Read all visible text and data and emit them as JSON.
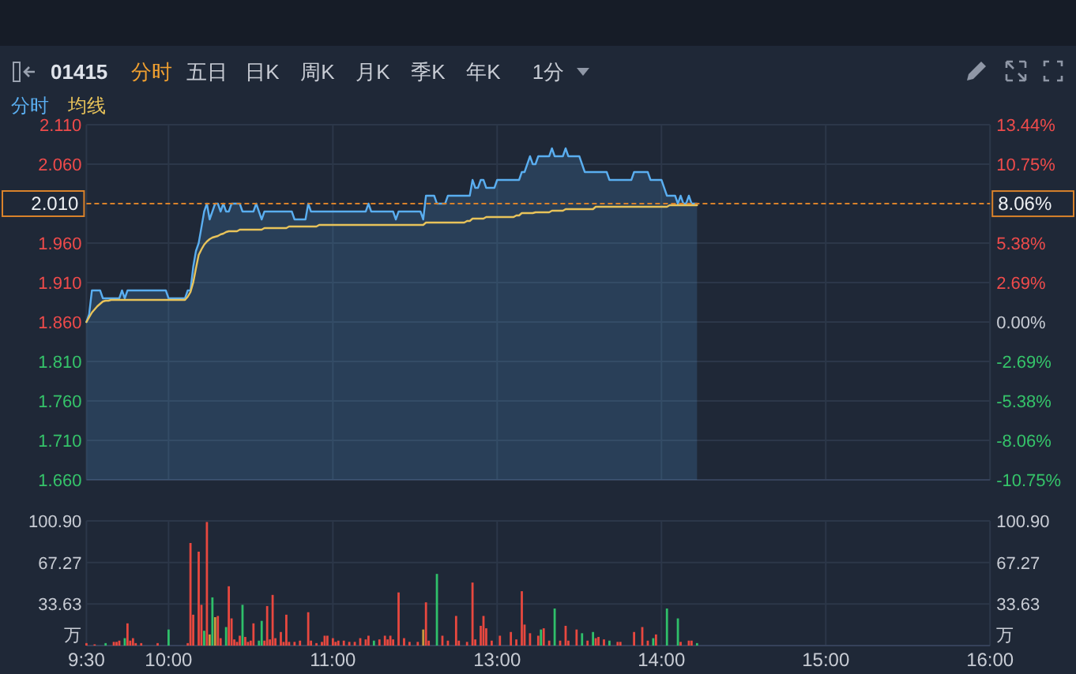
{
  "chart_data": [
    {
      "type": "line",
      "title": "01415",
      "annotations": [
        "分时",
        "五日",
        "日K",
        "周K",
        "月K",
        "季K",
        "年K",
        "1分"
      ],
      "legend": "top left",
      "grid": true,
      "tick_labels": "y",
      "categories": [
        null,
        null,
        null,
        null,
        null,
        null,
        null,
        null,
        null,
        null,
        null,
        null,
        null,
        null,
        null,
        null,
        null,
        null,
        null,
        null,
        null,
        null,
        null,
        null,
        null,
        null,
        null,
        null,
        null,
        null,
        null,
        null,
        null,
        null,
        null,
        null,
        null,
        null,
        null,
        null,
        null,
        null,
        null,
        null,
        null,
        null,
        null,
        null,
        null,
        null,
        null,
        null,
        null,
        null,
        null,
        null,
        null,
        null,
        null,
        null,
        null,
        null,
        null,
        null,
        null,
        null,
        null,
        null,
        null,
        null,
        null,
        null,
        null,
        null,
        null,
        null,
        null,
        null,
        null,
        null,
        null,
        null,
        null,
        null,
        null,
        null,
        null,
        null,
        null,
        null,
        null,
        null,
        null,
        null,
        null,
        null,
        null,
        null,
        null,
        null,
        null,
        null,
        null,
        null,
        null,
        null,
        null,
        null,
        null,
        null,
        null,
        null,
        null,
        null,
        null,
        null,
        null,
        null,
        null,
        null,
        null,
        null,
        null,
        null,
        null,
        null,
        null,
        null,
        null,
        null,
        null,
        null,
        null,
        null,
        null,
        null,
        null,
        null,
        null,
        null,
        null,
        null,
        null,
        null,
        null,
        null,
        null,
        null,
        null,
        null,
        null,
        null,
        null,
        null,
        null,
        null,
        null,
        null,
        null,
        null,
        null,
        null,
        null,
        null,
        null,
        null,
        null,
        null,
        null,
        null,
        null,
        null,
        null,
        null,
        null,
        null,
        null,
        null,
        null,
        null,
        null,
        null,
        null,
        null,
        null,
        null,
        null,
        null,
        null,
        null,
        null,
        null,
        null,
        null,
        null,
        null,
        null,
        null,
        null,
        null,
        null,
        null,
        null,
        null,
        null,
        null,
        null,
        null,
        null,
        null,
        null,
        null,
        null,
        null,
        null,
        null,
        null,
        null,
        null,
        null,
        null,
        null,
        null,
        null,
        null,
        null,
        null,
        null,
        null,
        null,
        null,
        null,
        null,
        null,
        null,
        null,
        null,
        null,
        null,
        null,
        null,
        null,
        null,
        null,
        null,
        null,
        null,
        null,
        null,
        null,
        null,
        null,
        null,
        null,
        null,
        null,
        null,
        null,
        null,
        null,
        null,
        null,
        null,
        null,
        null,
        null,
        null,
        null,
        null,
        null,
        null,
        null,
        null,
        null,
        null,
        null,
        null,
        null,
        null,
        null,
        null,
        null,
        null,
        null,
        null,
        null,
        null,
        null,
        null,
        null,
        null,
        null,
        null,
        null,
        null,
        null,
        null,
        null,
        null,
        null,
        null,
        null,
        null,
        null,
        null,
        null,
        null,
        null,
        null,
        null,
        null,
        null,
        null,
        null,
        null,
        null,
        null,
        null,
        null,
        null,
        null,
        null,
        null,
        null,
        null,
        null,
        null,
        null,
        null,
        null,
        null
      ],
      "ylim": [
        1.66,
        2.11
      ],
      "yticks": [
        {
          "value": 1.66,
          "label": "1.660"
        },
        {
          "value": 1.71,
          "label": "1.710"
        },
        {
          "value": 1.76,
          "label": "1.760"
        },
        {
          "value": 1.81,
          "label": "1.810"
        },
        {
          "value": 1.86,
          "label": "1.860"
        },
        {
          "value": 1.91,
          "label": "1.910"
        },
        {
          "value": 1.96,
          "label": "1.960"
        },
        {
          "value": 2.06,
          "label": "2.060"
        },
        {
          "value": 2.11,
          "label": "2.110"
        }
      ],
      "y2lim": [
        -10.75,
        13.44
      ],
      "y2ticks": [
        {
          "value": -10.75,
          "label": "-10.75%"
        },
        {
          "value": -8.06,
          "label": "-8.06%"
        },
        {
          "value": -5.38,
          "label": "-5.38%"
        },
        {
          "value": -2.69,
          "label": "-2.69%"
        },
        {
          "value": 0,
          "label": "0.00%"
        },
        {
          "value": 2.69,
          "label": "2.69%"
        },
        {
          "value": 5.38,
          "label": "5.38%"
        },
        {
          "value": 8.06,
          "label": "8.06%"
        },
        {
          "value": 10.75,
          "label": "10.75%"
        },
        {
          "value": 13.44,
          "label": "13.44%"
        }
      ],
      "ref_lines": [
        {
          "axis": "y",
          "value": 2.01,
          "label": "2.010",
          "color": "#d9822b",
          "line_style": "dashed"
        }
      ],
      "series": [
        {
          "name": "分时",
          "type": "area",
          "color": "#5aaef0",
          "values": [
            1.86,
            1.87,
            1.9,
            1.9,
            1.9,
            1.9,
            1.89,
            1.89,
            1.89,
            1.89,
            1.89,
            1.89,
            1.89,
            1.9,
            1.89,
            1.9,
            1.9,
            1.9,
            1.9,
            1.9,
            1.9,
            1.9,
            1.9,
            1.9,
            1.9,
            1.9,
            1.9,
            1.9,
            1.9,
            1.9,
            1.89,
            1.89,
            1.89,
            1.89,
            1.89,
            1.89,
            1.89,
            1.9,
            1.9,
            1.93,
            1.95,
            1.96,
            1.98,
            2.0,
            2.01,
            1.99,
            2.0,
            2.01,
            2.01,
            2.0,
            2.01,
            2.0,
            2.0,
            2.01,
            2.01,
            2.01,
            2.01,
            2.0,
            2.0,
            2.0,
            2.0,
            2.0,
            2.01,
            2.0,
            1.99,
            2.0,
            2.0,
            2.0,
            2.0,
            2.0,
            2.0,
            2.0,
            2.0,
            2.0,
            2.0,
            2.0,
            1.99,
            1.99,
            1.99,
            1.99,
            1.99,
            2.01,
            2.0,
            2.0,
            2.0,
            2.0,
            2.0,
            2.0,
            2.0,
            2.0,
            2.0,
            2.0,
            2.0,
            2.0,
            2.0,
            2.0,
            2.0,
            2.0,
            2.0,
            2.0,
            2.0,
            2.0,
            2.0,
            2.01,
            2.0,
            2.0,
            2.0,
            2.0,
            2.0,
            2.0,
            2.0,
            2.0,
            2.0,
            1.99,
            2.0,
            2.0,
            2.0,
            2.0,
            2.0,
            2.0,
            2.0,
            2.0,
            2.0,
            1.99,
            2.02,
            2.02,
            2.02,
            2.02,
            2.01,
            2.01,
            2.01,
            2.01,
            2.02,
            2.02,
            2.02,
            2.02,
            2.02,
            2.02,
            2.02,
            2.02,
            2.02,
            2.04,
            2.03,
            2.03,
            2.04,
            2.04,
            2.03,
            2.03,
            2.03,
            2.03,
            2.04,
            2.04,
            2.04,
            2.04,
            2.04,
            2.04,
            2.04,
            2.04,
            2.04,
            2.05,
            2.05,
            2.06,
            2.07,
            2.06,
            2.06,
            2.07,
            2.07,
            2.07,
            2.07,
            2.07,
            2.08,
            2.07,
            2.07,
            2.07,
            2.07,
            2.08,
            2.07,
            2.07,
            2.07,
            2.07,
            2.07,
            2.06,
            2.05,
            2.05,
            2.05,
            2.05,
            2.05,
            2.05,
            2.05,
            2.05,
            2.05,
            2.04,
            2.04,
            2.04,
            2.04,
            2.04,
            2.04,
            2.04,
            2.04,
            2.04,
            2.05,
            2.05,
            2.05,
            2.05,
            2.05,
            2.05,
            2.04,
            2.04,
            2.04,
            2.04,
            2.04,
            2.03,
            2.02,
            2.02,
            2.02,
            2.02,
            2.01,
            2.02,
            2.01,
            2.01,
            2.02,
            2.01,
            2.01,
            2.01,
            null,
            null,
            null,
            null,
            null,
            null,
            null,
            null,
            null,
            null,
            null,
            null,
            null,
            null,
            null,
            null,
            null,
            null,
            null,
            null,
            null,
            null,
            null,
            null,
            null,
            null,
            null,
            null,
            null,
            null,
            null,
            null,
            null,
            null,
            null,
            null,
            null,
            null,
            null,
            null,
            null,
            null,
            null,
            null,
            null,
            null,
            null,
            null,
            null,
            null,
            null,
            null,
            null,
            null,
            null,
            null,
            null,
            null,
            null,
            null,
            null,
            null,
            null,
            null,
            null,
            null,
            null,
            null,
            null,
            null,
            null,
            null,
            null,
            null,
            null,
            null,
            null,
            null,
            null,
            null,
            null,
            null,
            null,
            null,
            null,
            null,
            null,
            null,
            null,
            null,
            null,
            null,
            null,
            null,
            null,
            null,
            null,
            null,
            null,
            null,
            null,
            null,
            null,
            null,
            null,
            null,
            null
          ]
        },
        {
          "name": "均线",
          "type": "line",
          "color": "#e8c35a",
          "values": [
            1.86,
            1.866,
            1.872,
            1.876,
            1.88,
            1.883,
            1.886,
            1.887,
            1.887,
            1.888,
            1.888,
            1.888,
            1.888,
            1.888,
            1.888,
            1.888,
            1.888,
            1.888,
            1.888,
            1.888,
            1.888,
            1.888,
            1.888,
            1.888,
            1.888,
            1.888,
            1.888,
            1.888,
            1.888,
            1.888,
            1.888,
            1.888,
            1.888,
            1.888,
            1.888,
            1.888,
            1.888,
            1.892,
            1.898,
            1.91,
            1.928,
            1.945,
            1.952,
            1.958,
            1.962,
            1.965,
            1.967,
            1.968,
            1.969,
            1.971,
            1.972,
            1.974,
            1.975,
            1.975,
            1.975,
            1.975,
            1.977,
            1.977,
            1.977,
            1.977,
            1.977,
            1.977,
            1.977,
            1.977,
            1.977,
            1.979,
            1.979,
            1.979,
            1.979,
            1.979,
            1.979,
            1.979,
            1.979,
            1.979,
            1.981,
            1.981,
            1.981,
            1.981,
            1.981,
            1.981,
            1.981,
            1.981,
            1.981,
            1.981,
            1.981,
            1.983,
            1.983,
            1.983,
            1.983,
            1.983,
            1.983,
            1.983,
            1.983,
            1.983,
            1.983,
            1.983,
            1.983,
            1.983,
            1.983,
            1.983,
            1.983,
            1.983,
            1.983,
            1.983,
            1.983,
            1.983,
            1.983,
            1.983,
            1.983,
            1.983,
            1.983,
            1.983,
            1.983,
            1.983,
            1.983,
            1.983,
            1.983,
            1.983,
            1.983,
            1.983,
            1.983,
            1.983,
            1.983,
            1.983,
            1.986,
            1.986,
            1.986,
            1.986,
            1.986,
            1.986,
            1.986,
            1.986,
            1.986,
            1.986,
            1.986,
            1.986,
            1.986,
            1.986,
            1.986,
            1.988,
            1.988,
            1.991,
            1.991,
            1.991,
            1.991,
            1.991,
            1.993,
            1.993,
            1.993,
            1.993,
            1.993,
            1.993,
            1.993,
            1.993,
            1.993,
            1.993,
            1.993,
            1.995,
            1.995,
            1.998,
            1.998,
            1.998,
            1.998,
            1.998,
            1.999,
            1.999,
            1.999,
            1.999,
            1.999,
            1.999,
            2.001,
            2.001,
            2.001,
            2.001,
            2.001,
            2.003,
            2.003,
            2.003,
            2.003,
            2.003,
            2.003,
            2.003,
            2.003,
            2.003,
            2.003,
            2.003,
            2.006,
            2.006,
            2.006,
            2.006,
            2.006,
            2.006,
            2.006,
            2.006,
            2.006,
            2.006,
            2.006,
            2.006,
            2.006,
            2.006,
            2.006,
            2.006,
            2.006,
            2.006,
            2.006,
            2.006,
            2.006,
            2.006,
            2.006,
            2.006,
            2.006,
            2.006,
            2.006,
            2.008,
            2.008,
            2.008,
            2.008,
            2.008,
            2.008,
            2.008,
            2.008,
            2.008,
            2.008,
            2.008,
            null,
            null,
            null,
            null,
            null,
            null,
            null,
            null,
            null,
            null,
            null,
            null,
            null,
            null,
            null,
            null,
            null,
            null,
            null,
            null,
            null,
            null,
            null,
            null,
            null,
            null,
            null,
            null,
            null,
            null,
            null,
            null,
            null,
            null,
            null,
            null,
            null,
            null,
            null,
            null,
            null,
            null,
            null,
            null,
            null,
            null,
            null,
            null,
            null,
            null,
            null,
            null,
            null,
            null,
            null,
            null,
            null,
            null,
            null,
            null,
            null,
            null,
            null,
            null,
            null,
            null,
            null,
            null,
            null,
            null,
            null,
            null,
            null,
            null,
            null,
            null,
            null,
            null,
            null,
            null,
            null,
            null,
            null,
            null,
            null,
            null,
            null,
            null,
            null,
            null,
            null,
            null,
            null,
            null,
            null,
            null,
            null,
            null,
            null,
            null,
            null,
            null,
            null,
            null,
            null,
            null,
            null
          ]
        }
      ]
    },
    {
      "type": "bar",
      "grid": true,
      "ylabel": "万",
      "y2label": "万",
      "categories": [
        "9:30",
        null,
        null,
        null,
        null,
        null,
        null,
        null,
        null,
        null,
        null,
        null,
        null,
        null,
        null,
        null,
        null,
        null,
        null,
        null,
        null,
        null,
        null,
        null,
        null,
        null,
        null,
        null,
        null,
        null,
        "10:00",
        null,
        null,
        null,
        null,
        null,
        null,
        null,
        null,
        null,
        null,
        null,
        null,
        null,
        null,
        null,
        null,
        null,
        null,
        null,
        null,
        null,
        null,
        null,
        null,
        null,
        null,
        null,
        null,
        null,
        null,
        null,
        null,
        null,
        null,
        null,
        null,
        null,
        null,
        null,
        null,
        null,
        null,
        null,
        null,
        null,
        null,
        null,
        null,
        null,
        null,
        null,
        null,
        null,
        null,
        null,
        null,
        null,
        null,
        null,
        "11:00",
        null,
        null,
        null,
        null,
        null,
        null,
        null,
        null,
        null,
        null,
        null,
        null,
        null,
        null,
        null,
        null,
        null,
        null,
        null,
        null,
        null,
        null,
        null,
        null,
        null,
        null,
        null,
        null,
        null,
        null,
        null,
        null,
        null,
        null,
        null,
        null,
        null,
        null,
        null,
        null,
        null,
        null,
        null,
        null,
        null,
        null,
        null,
        null,
        null,
        null,
        null,
        null,
        null,
        null,
        null,
        null,
        null,
        null,
        null,
        "13:00",
        null,
        null,
        null,
        null,
        null,
        null,
        null,
        null,
        null,
        null,
        null,
        null,
        null,
        null,
        null,
        null,
        null,
        null,
        null,
        null,
        null,
        null,
        null,
        null,
        null,
        null,
        null,
        null,
        null,
        null,
        null,
        null,
        null,
        null,
        null,
        null,
        null,
        null,
        null,
        null,
        null,
        null,
        null,
        null,
        null,
        null,
        null,
        null,
        null,
        null,
        null,
        null,
        null,
        null,
        null,
        null,
        null,
        null,
        null,
        "14:00",
        null,
        null,
        null,
        null,
        null,
        null,
        null,
        null,
        null,
        null,
        null,
        null,
        null,
        null,
        null,
        null,
        null,
        null,
        null,
        null,
        null,
        null,
        null,
        null,
        null,
        null,
        null,
        null,
        null,
        null,
        null,
        null,
        null,
        null,
        null,
        null,
        null,
        null,
        null,
        null,
        null,
        null,
        null,
        null,
        null,
        null,
        null,
        null,
        null,
        null,
        null,
        null,
        null,
        null,
        null,
        null,
        null,
        null,
        null,
        "15:00",
        null,
        null,
        null,
        null,
        null,
        null,
        null,
        null,
        null,
        null,
        null,
        null,
        null,
        null,
        null,
        null,
        null,
        null,
        null,
        null,
        null,
        null,
        null,
        null,
        null,
        null,
        null,
        null,
        null,
        null,
        null,
        null,
        null,
        null,
        null,
        null,
        null,
        null,
        null,
        null,
        null,
        null,
        null,
        null,
        null,
        null,
        null,
        null,
        null,
        null,
        null,
        null,
        null,
        null,
        null,
        null,
        null,
        null,
        null,
        "16:00"
      ],
      "ylim": [
        0,
        100.9
      ],
      "yticks": [
        33.63,
        67.27,
        {
          "value": 100.9,
          "label": "100.90"
        }
      ],
      "y2lim": [
        0,
        100.9
      ],
      "y2ticks": [
        33.63,
        67.27,
        {
          "value": 100.9,
          "label": "100.90"
        }
      ],
      "values": [
        2,
        null,
        null,
        1,
        null,
        null,
        null,
        2,
        null,
        null,
        3,
        3,
        4,
        null,
        6,
        18,
        4,
        6,
        2,
        null,
        2,
        null,
        null,
        null,
        null,
        null,
        2,
        null,
        null,
        null,
        13,
        null,
        null,
        null,
        null,
        null,
        null,
        2,
        83,
        25,
        null,
        76,
        33,
        12,
        100,
        9,
        39,
        23,
        24,
        6,
        null,
        15,
        48,
        22,
        5,
        3,
        8,
        33,
        7,
        3,
        4,
        18,
        null,
        4,
        20,
        4,
        32,
        5,
        41,
        6,
        null,
        11,
        3,
        25,
        3,
        null,
        3,
        null,
        4,
        null,
        null,
        27,
        4,
        null,
        2,
        null,
        3,
        8,
        8,
        null,
        6,
        3,
        4,
        null,
        4,
        null,
        3,
        null,
        3,
        null,
        6,
        null,
        5,
        8,
        null,
        4,
        null,
        5,
        null,
        8,
        5,
        8,
        5,
        null,
        43,
        null,
        6,
        null,
        3,
        null,
        null,
        3,
        null,
        13,
        35,
        4,
        null,
        null,
        58,
        null,
        8,
        null,
        4,
        null,
        null,
        24,
        4,
        null,
        null,
        3,
        null,
        51,
        5,
        null,
        16,
        24,
        14,
        null,
        4,
        null,
        null,
        8,
        null,
        null,
        null,
        11,
        null,
        5,
        null,
        44,
        17,
        null,
        10,
        null,
        null,
        8,
        13,
        14,
        null,
        4,
        null,
        30,
        null,
        4,
        null,
        16,
        4,
        null,
        null,
        13,
        null,
        10,
        null,
        4,
        null,
        11,
        6,
        7,
        null,
        5,
        null,
        4,
        null,
        null,
        3,
        3,
        null,
        null,
        null,
        null,
        11,
        null,
        null,
        15,
        null,
        4,
        null,
        6,
        9,
        null,
        null,
        null,
        30,
        null,
        null,
        null,
        22,
        3,
        null,
        null,
        4,
        4,
        null,
        2,
        null,
        null,
        null,
        null,
        null,
        null,
        null,
        null,
        null,
        null,
        null,
        null,
        null,
        null,
        null,
        null,
        null,
        null,
        null,
        null,
        null,
        null,
        null,
        null,
        null,
        null,
        null,
        null,
        null,
        null,
        null,
        null,
        null,
        null,
        null,
        null,
        null,
        null,
        null,
        null,
        null,
        null,
        null,
        null,
        null,
        null,
        null,
        null,
        null,
        null,
        null,
        null,
        null,
        null,
        null,
        null,
        null,
        null,
        null,
        null,
        null,
        null,
        null,
        null,
        null,
        null,
        null,
        null,
        null,
        null,
        null,
        null,
        null,
        null,
        null,
        null,
        null,
        null,
        null,
        null,
        null,
        null,
        null,
        null,
        null,
        null,
        null,
        null,
        null,
        null,
        null,
        null,
        null,
        null,
        null,
        null,
        null,
        null,
        null,
        null,
        null,
        null,
        null,
        null,
        null,
        null,
        null
      ],
      "colors": [
        "#e8483f",
        null,
        null,
        "#e8483f",
        null,
        null,
        null,
        "#2fc06a",
        null,
        null,
        "#e8483f",
        "#e8483f",
        "#e8483f",
        null,
        "#2fc06a",
        "#e8483f",
        "#e8483f",
        "#e8483f",
        "#e8483f",
        null,
        "#e8483f",
        null,
        null,
        null,
        null,
        null,
        "#e8483f",
        null,
        null,
        null,
        "#2fc06a",
        null,
        null,
        null,
        null,
        null,
        null,
        "#e8483f",
        "#e8483f",
        "#e8483f",
        null,
        "#e8483f",
        "#e8483f",
        "#2fc06a",
        "#e8483f",
        "#c99a3e",
        "#2fc06a",
        "#c99a3e",
        "#e8483f",
        "#e8483f",
        null,
        "#2fc06a",
        "#e8483f",
        "#e8483f",
        "#e8483f",
        "#e8483f",
        "#e8483f",
        "#2fc06a",
        "#e8483f",
        "#e8483f",
        "#e8483f",
        "#e8483f",
        null,
        "#2fc06a",
        "#2fc06a",
        "#e8483f",
        "#e8483f",
        "#e8483f",
        "#e8483f",
        "#e8483f",
        null,
        "#e8483f",
        "#e8483f",
        "#e8483f",
        "#e8483f",
        null,
        "#e8483f",
        null,
        "#e8483f",
        null,
        null,
        "#e8483f",
        "#e8483f",
        null,
        "#e8483f",
        null,
        "#e8483f",
        "#e8483f",
        "#e8483f",
        null,
        "#e8483f",
        "#e8483f",
        "#e8483f",
        null,
        "#e8483f",
        null,
        "#e8483f",
        null,
        "#e8483f",
        null,
        "#e8483f",
        null,
        "#e8483f",
        "#e8483f",
        null,
        "#2fc06a",
        null,
        "#e8483f",
        null,
        "#e8483f",
        "#e8483f",
        "#e8483f",
        "#e8483f",
        null,
        "#e8483f",
        null,
        "#e8483f",
        null,
        "#e8483f",
        null,
        null,
        "#e8483f",
        null,
        "#c99a3e",
        "#e8483f",
        "#e8483f",
        null,
        null,
        "#2fc06a",
        null,
        "#e8483f",
        null,
        "#e8483f",
        null,
        null,
        "#e8483f",
        "#e8483f",
        null,
        null,
        "#e8483f",
        null,
        "#e8483f",
        "#e8483f",
        null,
        "#e8483f",
        "#e8483f",
        "#e8483f",
        null,
        "#e8483f",
        null,
        null,
        "#e8483f",
        null,
        null,
        null,
        "#e8483f",
        null,
        "#e8483f",
        null,
        "#e8483f",
        "#e8483f",
        null,
        "#e8483f",
        null,
        null,
        "#e8483f",
        "#2fc06a",
        "#e8483f",
        null,
        "#e8483f",
        null,
        "#2fc06a",
        null,
        "#e8483f",
        null,
        "#e8483f",
        "#e8483f",
        null,
        null,
        "#e8483f",
        null,
        "#2fc06a",
        null,
        "#e8483f",
        null,
        "#2fc06a",
        "#e8483f",
        "#e8483f",
        null,
        "#e8483f",
        null,
        "#2fc06a",
        null,
        null,
        "#e8483f",
        "#e8483f",
        null,
        null,
        null,
        null,
        "#e8483f",
        null,
        null,
        "#e8483f",
        null,
        "#e8483f",
        null,
        "#2fc06a",
        "#e8483f",
        null,
        null,
        null,
        "#2fc06a",
        null,
        null,
        null,
        "#2fc06a",
        "#e8483f",
        null,
        null,
        "#e8483f",
        "#e8483f",
        null,
        "#2fc06a",
        null,
        null,
        null,
        null,
        null,
        null,
        null,
        null,
        null,
        null,
        null,
        null,
        null,
        null,
        null,
        null,
        null,
        null,
        null,
        null,
        null,
        null,
        null,
        null,
        null,
        null,
        null,
        null,
        null,
        null,
        null,
        null,
        null,
        null,
        null,
        null,
        null,
        null,
        null,
        null,
        null,
        null,
        null,
        null,
        null,
        null,
        null,
        null,
        null,
        null,
        null,
        null,
        null,
        null,
        null,
        null,
        null,
        null,
        null,
        null,
        null,
        null,
        null,
        null,
        null,
        null,
        null,
        null,
        null,
        null,
        null,
        null,
        null,
        null,
        null,
        null,
        null,
        null,
        null,
        null,
        null,
        null,
        null,
        null,
        null,
        null,
        null,
        null,
        null,
        null,
        null,
        null,
        null,
        null,
        null,
        null,
        null,
        null,
        null,
        null,
        null,
        null,
        null,
        null,
        null,
        null,
        null
      ]
    }
  ]
}
